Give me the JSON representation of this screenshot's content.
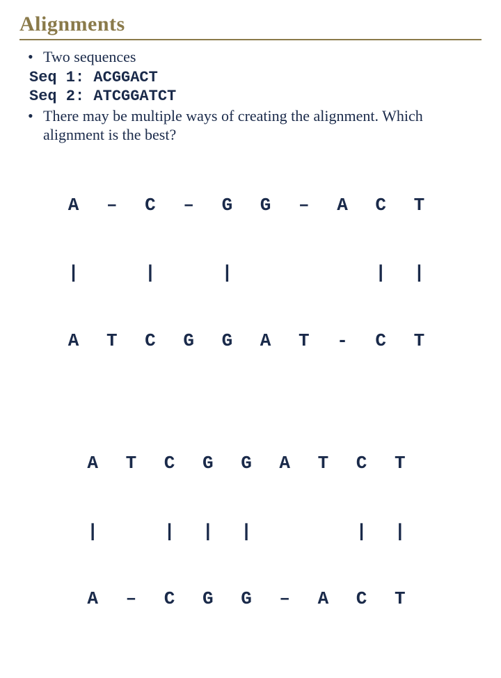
{
  "title": "Alignments",
  "bullets": {
    "b1": "Two sequences",
    "b2": "There may be multiple ways of creating the alignment. Which alignment is the best?"
  },
  "seqs": {
    "s1": "Seq 1: ACGGACT",
    "s2": "Seq 2: ATCGGATCT"
  },
  "alignment1": {
    "row1": "A – C – G G – A C T",
    "row2": "|   |   |       | |",
    "row3": "A T C G G A T - C T"
  },
  "alignment2": {
    "row1": "A T C G G A T C T",
    "row2": "|   | | |     | |",
    "row3": "A – C G G – A C T"
  },
  "colors": {
    "title_color": "#8a7a4a",
    "text_color": "#1a2a4a",
    "background": "#ffffff"
  }
}
